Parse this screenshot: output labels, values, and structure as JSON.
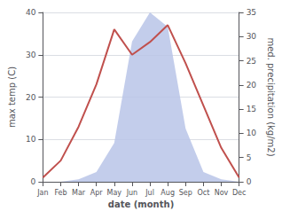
{
  "chart_data": {
    "type": "line",
    "xlabel": "date (month)",
    "ylabel": "max temp (C)",
    "y2label": "med. precipitation (kg/m2)",
    "categories": [
      "Jan",
      "Feb",
      "Mar",
      "Apr",
      "May",
      "Jun",
      "Jul",
      "Aug",
      "Sep",
      "Oct",
      "Nov",
      "Dec"
    ],
    "series": [
      {
        "type": "area",
        "axis": "y2",
        "color": "#b8c4e8",
        "values": [
          0,
          0,
          0.5,
          2,
          8,
          29,
          35,
          32,
          11,
          2,
          0.5,
          0
        ]
      },
      {
        "type": "line",
        "color": "#c0504d",
        "values": [
          1,
          5,
          13,
          23,
          36,
          30,
          33,
          37,
          28,
          18,
          8,
          1
        ]
      }
    ],
    "ylim": [
      0,
      40
    ],
    "yticks": [
      0,
      10,
      20,
      30,
      40
    ],
    "y2lim": [
      0,
      35
    ],
    "y2ticks": [
      0,
      5,
      10,
      15,
      20,
      25,
      30,
      35
    ],
    "grid": true
  }
}
